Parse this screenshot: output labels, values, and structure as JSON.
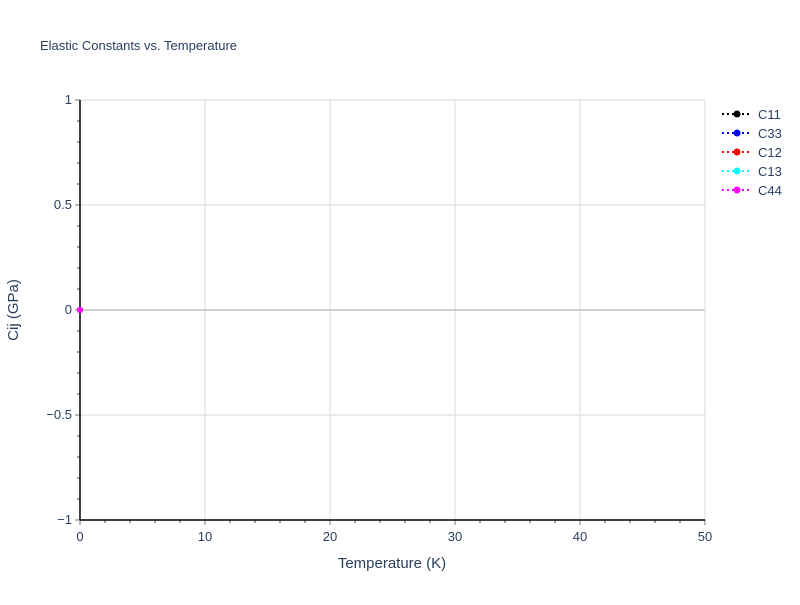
{
  "chart_data": {
    "type": "line",
    "title": "Elastic Constants vs. Temperature",
    "xlabel": "Temperature (K)",
    "ylabel": "Cij (GPa)",
    "xlim": [
      0,
      50
    ],
    "ylim": [
      -1,
      1
    ],
    "x_ticks": [
      0,
      10,
      20,
      30,
      40,
      50
    ],
    "x_tick_labels": [
      "0",
      "10",
      "20",
      "30",
      "40",
      "50"
    ],
    "y_ticks": [
      -1,
      -0.5,
      0,
      0.5,
      1
    ],
    "y_tick_labels": [
      "−1",
      "−0.5",
      "0",
      "0.5",
      "1"
    ],
    "grid": true,
    "legend_position": "top-right",
    "line_style": "dotted",
    "series": [
      {
        "name": "C11",
        "color": "#000000",
        "x": [
          0
        ],
        "y": [
          0
        ]
      },
      {
        "name": "C33",
        "color": "#0000ff",
        "x": [
          0
        ],
        "y": [
          0
        ]
      },
      {
        "name": "C12",
        "color": "#ff0000",
        "x": [
          0
        ],
        "y": [
          0
        ]
      },
      {
        "name": "C13",
        "color": "#00ffff",
        "x": [
          0
        ],
        "y": [
          0
        ]
      },
      {
        "name": "C44",
        "color": "#ff00ff",
        "x": [
          0
        ],
        "y": [
          0
        ]
      }
    ]
  }
}
